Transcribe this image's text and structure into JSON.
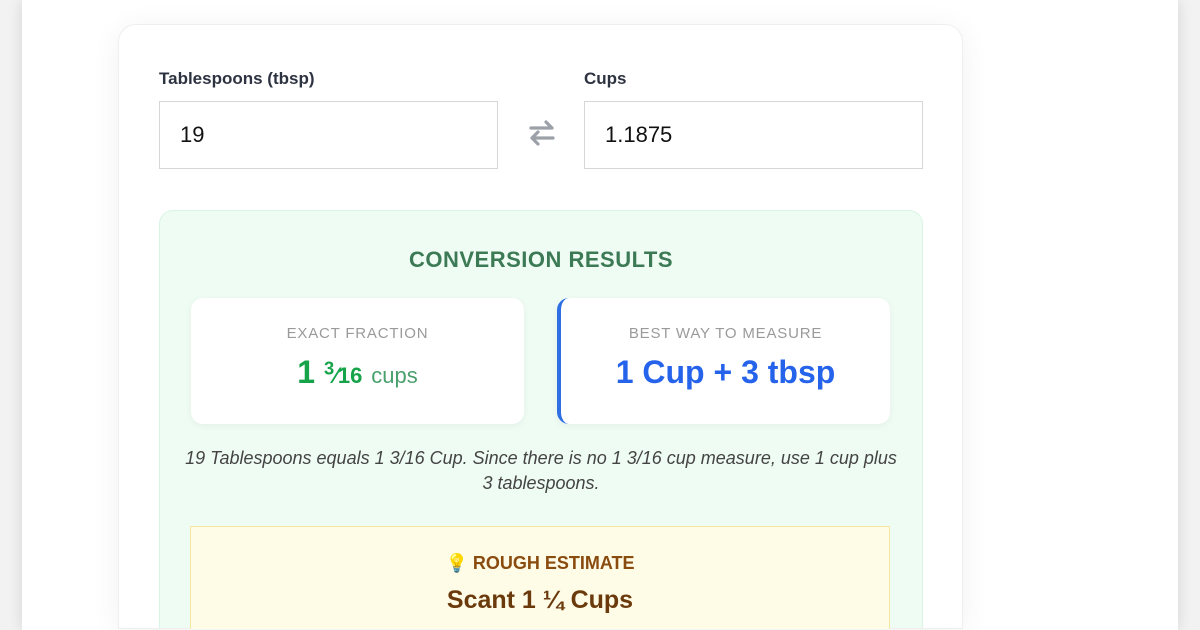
{
  "converter": {
    "from_label": "Tablespoons (tbsp)",
    "from_value": "19",
    "to_label": "Cups",
    "to_value": "1.1875",
    "swap_icon": "swap-arrows-icon"
  },
  "results": {
    "title": "CONVERSION RESULTS",
    "exact": {
      "heading": "EXACT FRACTION",
      "whole": "1",
      "numerator": "3",
      "denominator": "16",
      "unit": "cups"
    },
    "best": {
      "heading": "BEST WAY TO MEASURE",
      "value": "1 Cup + 3 tbsp"
    },
    "description": "19 Tablespoons equals 1 3/16 Cup. Since there is no 1 3/16 cup measure, use 1 cup plus 3 tablespoons.",
    "rough": {
      "icon": "lightbulb-icon",
      "heading": "ROUGH ESTIMATE",
      "value": "Scant 1 ¼ Cups"
    }
  },
  "colors": {
    "accent_green": "#16a34a",
    "accent_blue": "#2563eb",
    "estimate_brown": "#8a4b0f"
  }
}
